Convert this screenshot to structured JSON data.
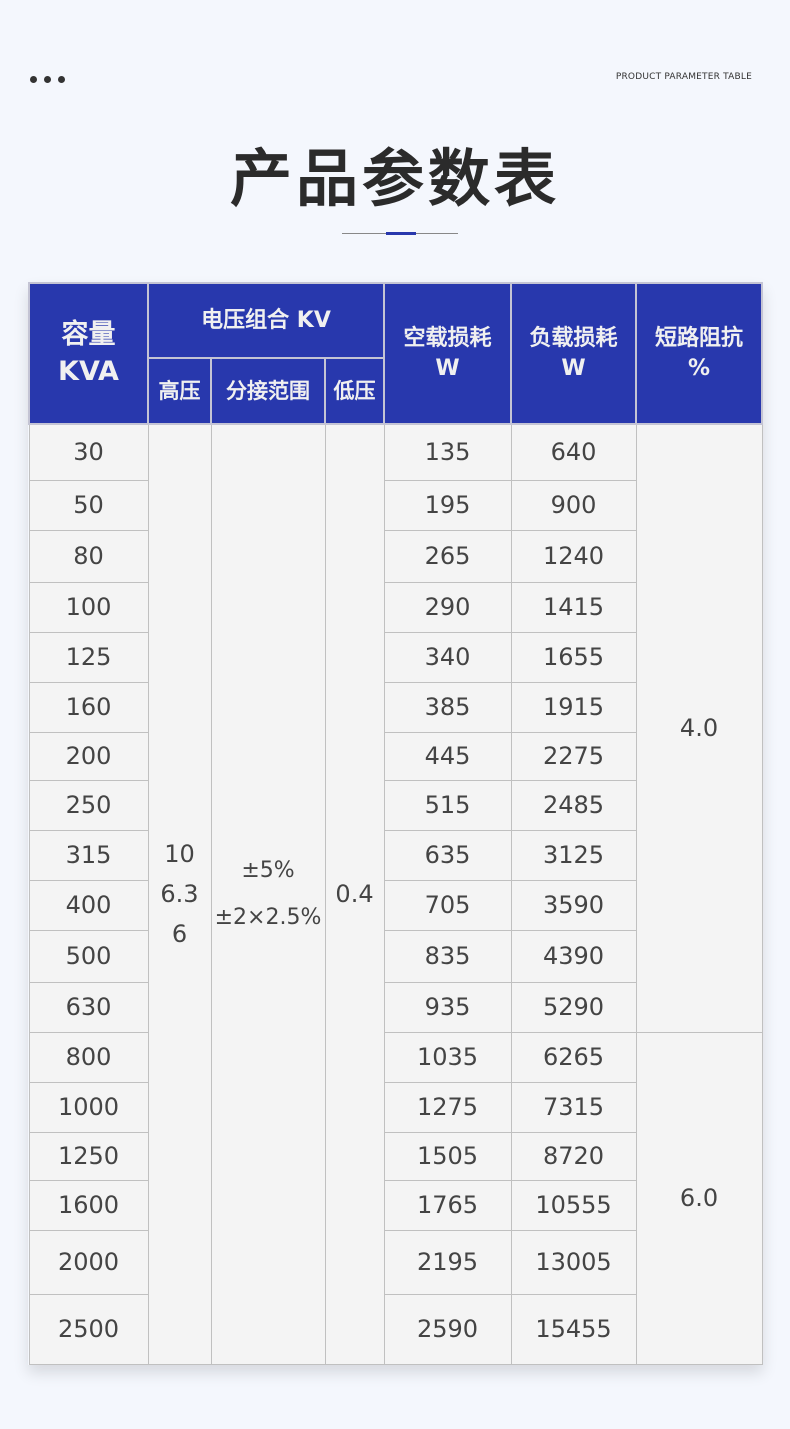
{
  "header": {
    "subtitle": "PRODUCT PARAMETER TABLE",
    "title": "产品参数表"
  },
  "table": {
    "headers": {
      "capacity": "容量",
      "capacity_unit": "KVA",
      "voltage_group": "电压组合 KV",
      "hv": "高压",
      "tap": "分接范围",
      "lv": "低压",
      "no_load": "空载损耗",
      "no_load_unit": "W",
      "load": "负载损耗",
      "load_unit": "W",
      "impedance": "短路阻抗",
      "impedance_unit": "%"
    },
    "hv_values": [
      "10",
      "6.3",
      "6"
    ],
    "tap_values": [
      "±5%",
      "±2×2.5%"
    ],
    "lv_value": "0.4",
    "impedance_values": [
      "4.0",
      "6.0"
    ],
    "rows": [
      {
        "capacity": "30",
        "no_load": "135",
        "load": "640"
      },
      {
        "capacity": "50",
        "no_load": "195",
        "load": "900"
      },
      {
        "capacity": "80",
        "no_load": "265",
        "load": "1240"
      },
      {
        "capacity": "100",
        "no_load": "290",
        "load": "1415"
      },
      {
        "capacity": "125",
        "no_load": "340",
        "load": "1655"
      },
      {
        "capacity": "160",
        "no_load": "385",
        "load": "1915"
      },
      {
        "capacity": "200",
        "no_load": "445",
        "load": "2275"
      },
      {
        "capacity": "250",
        "no_load": "515",
        "load": "2485"
      },
      {
        "capacity": "315",
        "no_load": "635",
        "load": "3125"
      },
      {
        "capacity": "400",
        "no_load": "705",
        "load": "3590"
      },
      {
        "capacity": "500",
        "no_load": "835",
        "load": "4390"
      },
      {
        "capacity": "630",
        "no_load": "935",
        "load": "5290"
      },
      {
        "capacity": "800",
        "no_load": "1035",
        "load": "6265"
      },
      {
        "capacity": "1000",
        "no_load": "1275",
        "load": "7315"
      },
      {
        "capacity": "1250",
        "no_load": "1505",
        "load": "8720"
      },
      {
        "capacity": "1600",
        "no_load": "1765",
        "load": "10555"
      },
      {
        "capacity": "2000",
        "no_load": "2195",
        "load": "13005"
      },
      {
        "capacity": "2500",
        "no_load": "2590",
        "load": "15455"
      }
    ]
  }
}
